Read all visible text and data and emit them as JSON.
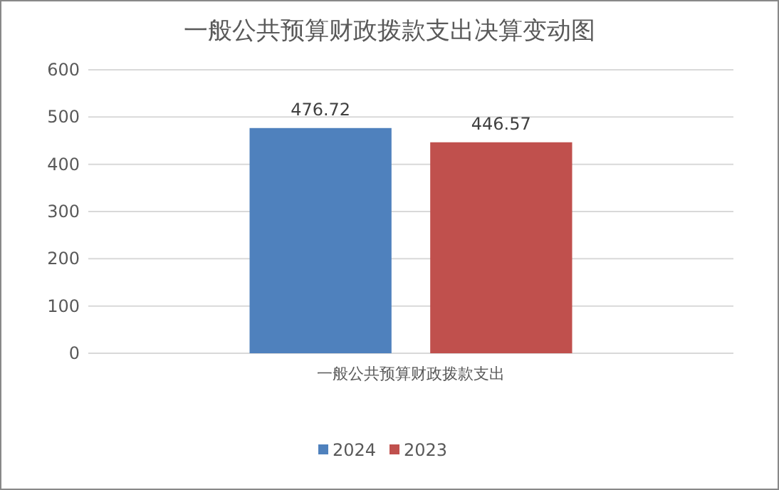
{
  "chart_data": {
    "type": "bar",
    "title": "一般公共预算财政拨款支出决算变动图",
    "categories": [
      "一般公共预算财政拨款支出"
    ],
    "series": [
      {
        "name": "2024",
        "color": "#4f81bd",
        "values": [
          476.72
        ]
      },
      {
        "name": "2023",
        "color": "#c0504d",
        "values": [
          446.57
        ]
      }
    ],
    "ylim": [
      0,
      600
    ],
    "yticks": [
      0,
      100,
      200,
      300,
      400,
      500,
      600
    ],
    "grid": "y",
    "legend": "bottom",
    "data_labels": true
  }
}
